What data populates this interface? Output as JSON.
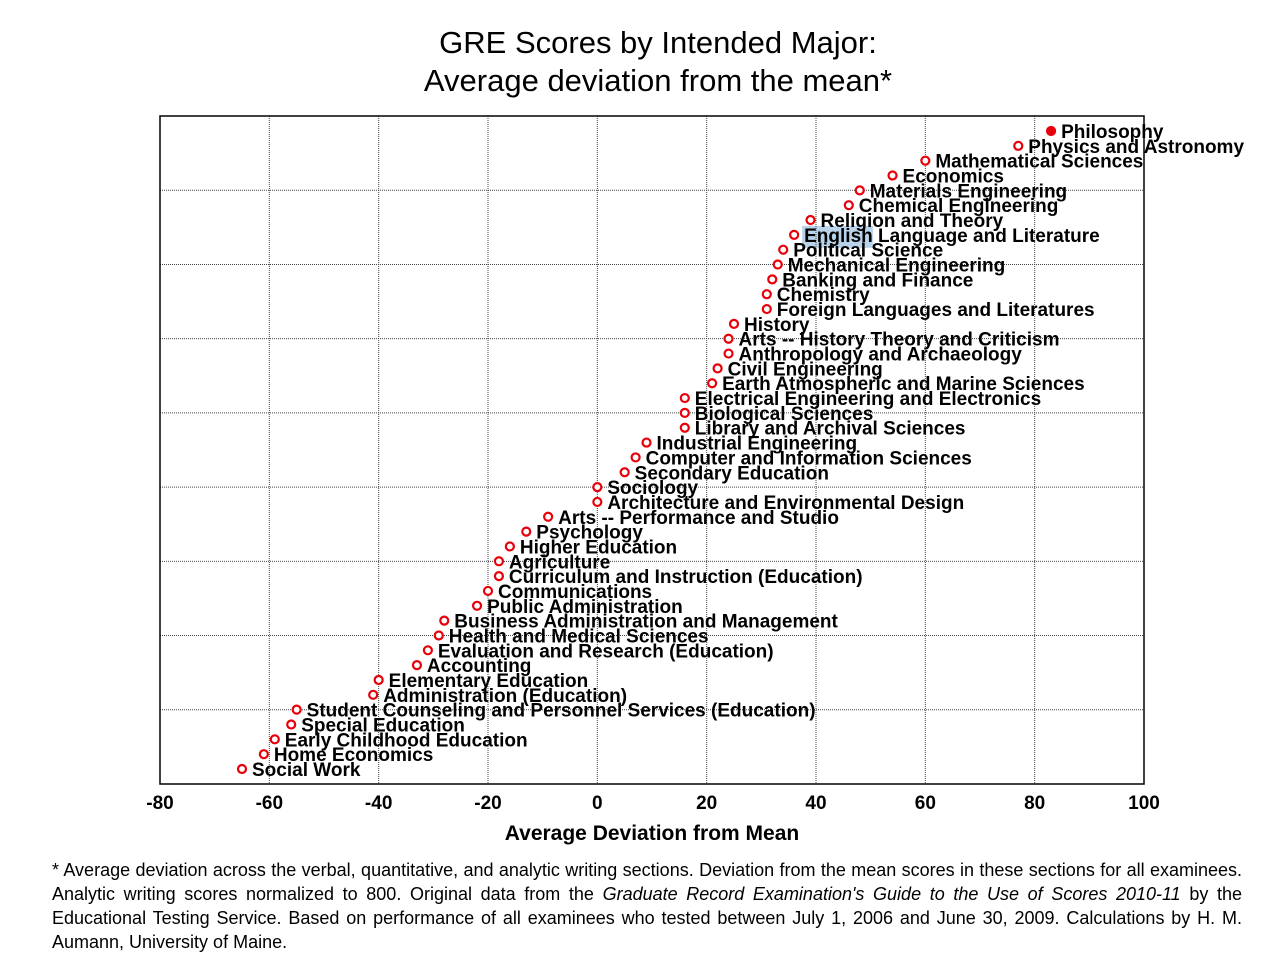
{
  "chart_data": {
    "type": "scatter",
    "title": "GRE Scores by Intended Major:",
    "subtitle": "Average deviation from the mean*",
    "xlabel": "Average Deviation from Mean",
    "ylabel": "",
    "xlim": [
      -80,
      100
    ],
    "x_ticks": [
      -80,
      -60,
      -40,
      -20,
      0,
      20,
      40,
      60,
      80,
      100
    ],
    "grid": true,
    "marker_color": "#e8000b",
    "highlight_color": "#b9d3ea",
    "points": [
      {
        "label": "Philosophy",
        "x": 83,
        "filled": true
      },
      {
        "label": "Physics and Astronomy",
        "x": 77
      },
      {
        "label": "Mathematical Sciences",
        "x": 60
      },
      {
        "label": "Economics",
        "x": 54
      },
      {
        "label": "Materials Engineering",
        "x": 48
      },
      {
        "label": "Chemical Engineering",
        "x": 46
      },
      {
        "label": "Religion and Theory",
        "x": 39
      },
      {
        "label": "English Language and Literature",
        "x": 36,
        "highlight": "English"
      },
      {
        "label": "Political Science",
        "x": 34
      },
      {
        "label": "Mechanical Engineering",
        "x": 33
      },
      {
        "label": "Banking and Finance",
        "x": 32
      },
      {
        "label": "Chemistry",
        "x": 31
      },
      {
        "label": "Foreign Languages and Literatures",
        "x": 31
      },
      {
        "label": "History",
        "x": 25
      },
      {
        "label": "Arts -- History Theory and Criticism",
        "x": 24
      },
      {
        "label": "Anthropology and Archaeology",
        "x": 24
      },
      {
        "label": "Civil Engineering",
        "x": 22
      },
      {
        "label": "Earth Atmospheric and Marine Sciences",
        "x": 21
      },
      {
        "label": "Electrical Engineering and Electronics",
        "x": 16
      },
      {
        "label": "Biological Sciences",
        "x": 16
      },
      {
        "label": "Library and Archival Sciences",
        "x": 16
      },
      {
        "label": "Industrial Engineering",
        "x": 9
      },
      {
        "label": "Computer and Information Sciences",
        "x": 7
      },
      {
        "label": "Secondary Education",
        "x": 5
      },
      {
        "label": "Sociology",
        "x": 0
      },
      {
        "label": "Architecture and Environmental Design",
        "x": 0
      },
      {
        "label": "Arts -- Performance and Studio",
        "x": -9
      },
      {
        "label": "Psychology",
        "x": -13
      },
      {
        "label": "Higher Education",
        "x": -16
      },
      {
        "label": "Agriculture",
        "x": -18
      },
      {
        "label": "Curriculum and Instruction (Education)",
        "x": -18
      },
      {
        "label": "Communications",
        "x": -20
      },
      {
        "label": "Public Administration",
        "x": -22
      },
      {
        "label": "Business Administration and Management",
        "x": -28
      },
      {
        "label": "Health and Medical Sciences",
        "x": -29
      },
      {
        "label": "Evaluation and Research (Education)",
        "x": -31
      },
      {
        "label": "Accounting",
        "x": -33
      },
      {
        "label": "Elementary Education",
        "x": -40
      },
      {
        "label": "Administration (Education)",
        "x": -41
      },
      {
        "label": "Student Counseling and Personnel Services (Education)",
        "x": -55
      },
      {
        "label": "Special Education",
        "x": -56
      },
      {
        "label": "Early Childhood Education",
        "x": -59
      },
      {
        "label": "Home Economics",
        "x": -61
      },
      {
        "label": "Social Work",
        "x": -65
      }
    ]
  },
  "footnote": {
    "part1": "* Average deviation across the verbal, quantitative, and analytic writing sections. Deviation from the mean scores in these sections for all examinees. Analytic writing scores normalized to 800. Original data from the ",
    "italic": "Graduate Record Examination's Guide to the Use of Scores 2010-11",
    "part2": " by the Educational Testing Service. Based on performance of all examinees who tested between July 1, 2006 and June 30, 2009. Calculations by H. M. Aumann, University of Maine."
  }
}
